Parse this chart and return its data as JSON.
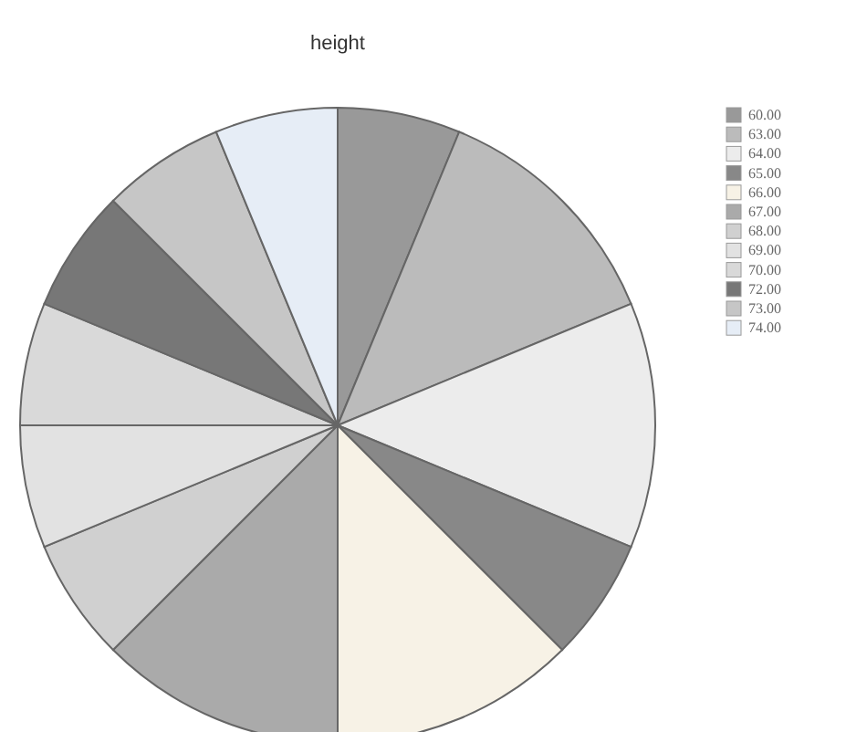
{
  "chart_data": {
    "type": "pie",
    "title": "height",
    "legend": "right",
    "categories": [
      "60.00",
      "63.00",
      "64.00",
      "65.00",
      "66.00",
      "67.00",
      "68.00",
      "69.00",
      "70.00",
      "72.00",
      "73.00",
      "74.00"
    ],
    "values": [
      6.25,
      12.5,
      12.5,
      6.25,
      12.5,
      12.5,
      6.25,
      6.25,
      6.25,
      6.25,
      6.25,
      6.25
    ],
    "colors": [
      "#999999",
      "#bbbbbb",
      "#ececec",
      "#888888",
      "#f7f2e6",
      "#aaaaaa",
      "#d0d0d0",
      "#e2e2e2",
      "#d9d9d9",
      "#777777",
      "#c6c6c6",
      "#e6edf6"
    ]
  }
}
